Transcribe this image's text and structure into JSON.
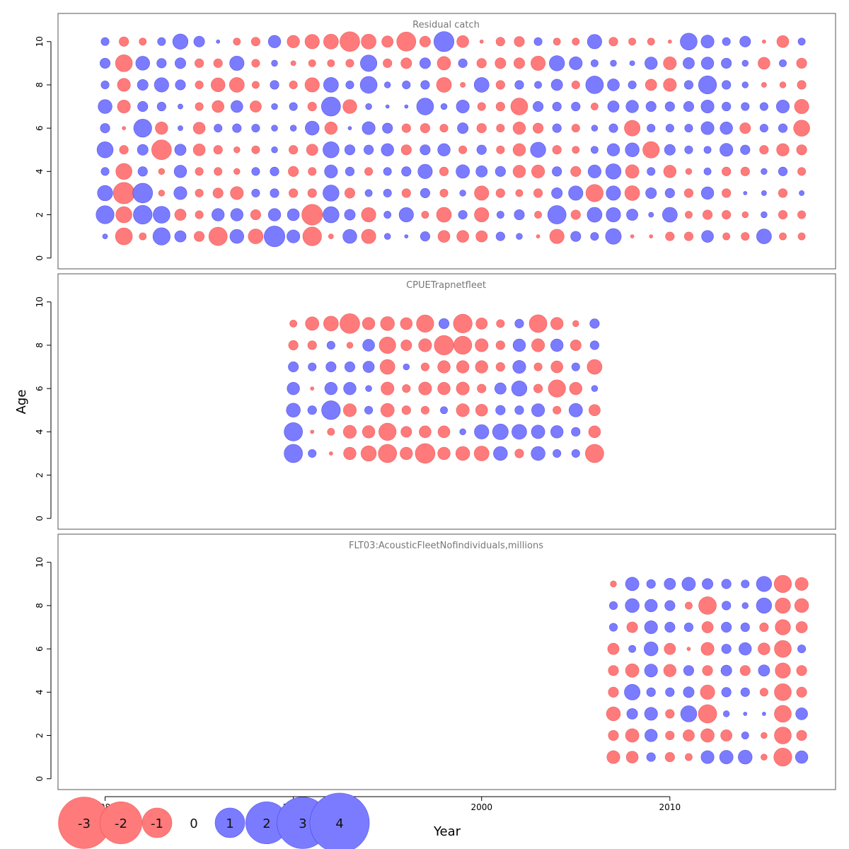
{
  "chart_data": {
    "type": "scatter",
    "subtype": "bubble-residuals",
    "xlabel": "Year",
    "ylabel": "Age",
    "xticks": [
      1980,
      1990,
      2000,
      2010
    ],
    "yticks": [
      0,
      2,
      4,
      6,
      8,
      10
    ],
    "xlim": [
      1977.5,
      2018.8
    ],
    "ylim": [
      -0.5,
      11.3
    ],
    "colors": {
      "negative": "#ff7a7a",
      "positive": "#7b7bff"
    },
    "panels": [
      {
        "title": "Residual catch",
        "years": [
          1980,
          1981,
          1982,
          1983,
          1984,
          1985,
          1986,
          1987,
          1988,
          1989,
          1990,
          1991,
          1992,
          1993,
          1994,
          1995,
          1996,
          1997,
          1998,
          1999,
          2000,
          2001,
          2002,
          2003,
          2004,
          2005,
          2006,
          2007,
          2008,
          2009,
          2010,
          2011,
          2012,
          2013,
          2014,
          2015,
          2016,
          2017
        ],
        "ages": [
          1,
          2,
          3,
          4,
          5,
          6,
          7,
          8,
          9,
          10
        ],
        "residuals": [
          [
            0.2,
            2.5,
            1.8,
            0.5,
            2.0,
            0.7,
            1.5,
            0.5,
            0.8,
            0.5
          ],
          [
            -2.2,
            -2.0,
            -3.5,
            -2.0,
            -0.6,
            -0.1,
            -1.3,
            -1.3,
            -2.2,
            -0.7
          ],
          [
            -0.4,
            2.7,
            3.0,
            0.7,
            0.9,
            2.5,
            0.8,
            0.9,
            1.5,
            -0.4
          ],
          [
            2.3,
            2.2,
            -0.3,
            -0.3,
            -3.0,
            -1.2,
            0.6,
            1.6,
            0.7,
            0.5
          ],
          [
            1.0,
            -1.0,
            1.3,
            1.2,
            1.0,
            0.2,
            0.2,
            0.8,
            0.9,
            1.8
          ],
          [
            -0.8,
            -0.5,
            -0.5,
            -0.5,
            -1.1,
            -1.1,
            -0.5,
            -0.5,
            -0.6,
            0.9
          ],
          [
            -2.6,
            1.2,
            -0.8,
            -0.5,
            -0.6,
            0.5,
            -1.1,
            -1.5,
            -0.6,
            0.1
          ],
          [
            1.5,
            1.2,
            -1.3,
            -0.3,
            -0.3,
            0.6,
            1.1,
            -1.7,
            1.6,
            -0.4
          ],
          [
            -1.7,
            -0.8,
            0.5,
            0.5,
            -0.5,
            0.5,
            -1.0,
            -0.4,
            -0.5,
            -0.6
          ],
          [
            3.3,
            1.2,
            0.6,
            0.6,
            0.3,
            0.3,
            0.3,
            0.6,
            0.3,
            1.2
          ],
          [
            1.3,
            1.1,
            -0.6,
            -0.8,
            -0.6,
            0.3,
            0.5,
            -0.5,
            -0.2,
            -1.2
          ],
          [
            -2.7,
            -3.3,
            -0.6,
            -0.5,
            -1.0,
            1.5,
            -0.6,
            -1.6,
            -0.4,
            -1.6
          ],
          [
            -0.2,
            2.0,
            2.0,
            1.3,
            2.0,
            -1.2,
            2.8,
            1.7,
            -0.4,
            -1.7
          ],
          [
            1.5,
            0.9,
            -0.8,
            0.6,
            0.8,
            0.1,
            -1.5,
            0.5,
            -0.5,
            -3.0
          ],
          [
            -1.6,
            -1.6,
            0.4,
            -0.5,
            0.7,
            1.3,
            0.3,
            2.2,
            2.1,
            -1.7
          ],
          [
            0.3,
            0.4,
            0.5,
            0.5,
            1.2,
            0.8,
            0.1,
            0.3,
            -0.6,
            -1.0
          ],
          [
            0.1,
            1.6,
            -0.6,
            0.7,
            -0.8,
            -0.6,
            0.1,
            0.5,
            -0.9,
            -2.8
          ],
          [
            0.7,
            -0.4,
            0.7,
            1.6,
            0.8,
            -0.7,
            2.2,
            0.6,
            0.9,
            -0.9
          ],
          [
            -1.1,
            -1.7,
            -0.5,
            -0.6,
            1.2,
            -0.5,
            0.3,
            -1.7,
            -1.4,
            3.1
          ],
          [
            -1.1,
            0.6,
            0.3,
            1.4,
            -0.5,
            0.9,
            1.3,
            -0.2,
            0.6,
            -1.1
          ],
          [
            -1.0,
            -1.6,
            -1.6,
            1.0,
            0.7,
            -0.7,
            -0.5,
            1.7,
            -0.7,
            -0.1
          ],
          [
            0.6,
            0.4,
            -0.6,
            0.8,
            -0.5,
            -0.5,
            -0.6,
            -0.6,
            -0.9,
            -0.6
          ],
          [
            0.3,
            0.8,
            -0.4,
            -1.2,
            -1.2,
            -1.2,
            -2.2,
            0.6,
            -0.9,
            -0.8
          ],
          [
            -0.1,
            -0.4,
            -0.6,
            -1.3,
            1.8,
            -0.8,
            0.8,
            0.4,
            -1.6,
            0.5
          ],
          [
            -1.6,
            2.6,
            0.9,
            0.7,
            -0.6,
            0.6,
            0.6,
            1.0,
            1.8,
            -0.4
          ],
          [
            0.8,
            -0.7,
            1.6,
            -0.8,
            -0.4,
            -0.5,
            0.6,
            -0.5,
            1.3,
            -0.4
          ],
          [
            0.5,
            1.7,
            -2.3,
            1.3,
            0.4,
            0.3,
            -0.4,
            2.4,
            0.4,
            1.6
          ],
          [
            1.9,
            1.6,
            1.6,
            1.8,
            1.2,
            0.6,
            1.0,
            1.1,
            0.3,
            -0.6
          ],
          [
            -0.1,
            1.0,
            -1.7,
            -1.4,
            1.5,
            -1.9,
            1.2,
            0.5,
            0.2,
            -0.4
          ],
          [
            -0.1,
            0.2,
            0.9,
            0.5,
            -2.1,
            0.5,
            0.8,
            -1.0,
            1.2,
            -0.4
          ],
          [
            -0.6,
            1.7,
            0.7,
            -1.2,
            0.9,
            0.5,
            0.7,
            -1.3,
            -1.3,
            -0.1
          ],
          [
            -0.6,
            -0.4,
            -0.6,
            -0.3,
            0.5,
            0.5,
            0.8,
            0.6,
            1.0,
            2.2
          ],
          [
            1.1,
            -0.7,
            1.2,
            0.4,
            0.4,
            1.3,
            1.3,
            2.5,
            1.2,
            1.3
          ],
          [
            -0.4,
            -0.6,
            -0.6,
            -0.6,
            1.3,
            1.2,
            0.6,
            0.6,
            0.8,
            0.5
          ],
          [
            -0.5,
            -0.3,
            0.1,
            -0.6,
            0.7,
            -0.9,
            0.5,
            0.3,
            0.3,
            0.9
          ],
          [
            1.7,
            0.3,
            0.2,
            0.3,
            -0.6,
            0.5,
            0.5,
            -0.2,
            -1.1,
            -0.1
          ],
          [
            -0.4,
            -0.6,
            -0.6,
            0.6,
            -1.2,
            0.6,
            1.3,
            -0.3,
            0.4,
            -1.1
          ],
          [
            -0.4,
            -0.5,
            0.2,
            -0.5,
            -0.8,
            -2.0,
            -1.6,
            -0.6,
            -0.8,
            0.4
          ]
        ]
      },
      {
        "title": "CPUETrapnetfleet",
        "years": [
          1990,
          1991,
          1992,
          1993,
          1994,
          1995,
          1996,
          1997,
          1998,
          1999,
          2000,
          2001,
          2002,
          2003,
          2004,
          2005,
          2006
        ],
        "ages": [
          3,
          4,
          5,
          6,
          7,
          8,
          9
        ],
        "residuals": [
          [
            2.6,
            2.6,
            1.5,
            1.2,
            0.8,
            -0.7,
            -0.4
          ],
          [
            0.5,
            -0.1,
            0.6,
            -0.1,
            0.5,
            -0.6,
            -1.4
          ],
          [
            -0.1,
            -0.4,
            2.7,
            1.2,
            0.8,
            0.5,
            -1.7
          ],
          [
            -1.2,
            -1.3,
            -1.3,
            1.2,
            0.8,
            -0.3,
            -3.0
          ],
          [
            -1.8,
            -1.2,
            0.5,
            0.3,
            1.0,
            1.1,
            -1.2
          ],
          [
            -2.6,
            -2.3,
            -1.4,
            -1.3,
            -1.7,
            -2.1,
            -1.5
          ],
          [
            -1.2,
            -0.9,
            -0.6,
            -0.5,
            0.3,
            -0.9,
            -1.1
          ],
          [
            -3.0,
            -1.1,
            -0.5,
            -1.3,
            -0.5,
            -1.3,
            -2.3
          ],
          [
            -1.2,
            -1.1,
            0.4,
            -1.2,
            -1.2,
            -2.9,
            0.8
          ],
          [
            -1.5,
            0.3,
            -1.3,
            -1.3,
            -1.2,
            -2.5,
            -2.7
          ],
          [
            -1.7,
            1.6,
            -1.1,
            -0.6,
            -1.2,
            -1.3,
            -1.0
          ],
          [
            1.5,
            1.9,
            0.7,
            1.0,
            -0.6,
            -0.6,
            -0.5
          ],
          [
            -0.6,
            1.7,
            0.6,
            1.8,
            1.3,
            1.2,
            0.6
          ],
          [
            1.5,
            1.4,
            1.3,
            -0.6,
            -0.5,
            -1.3,
            -2.4
          ],
          [
            0.5,
            1.2,
            -0.5,
            -2.3,
            -1.1,
            1.2,
            -1.2
          ],
          [
            0.5,
            0.6,
            1.4,
            -1.2,
            0.5,
            -0.9,
            -0.3
          ],
          [
            -2.6,
            -1.1,
            -1.0,
            0.3,
            -1.7,
            0.6,
            0.7
          ]
        ]
      },
      {
        "title": "FLT03:AcousticFleetNofindividuals,millions",
        "years": [
          2007,
          2008,
          2009,
          2010,
          2011,
          2012,
          2013,
          2014,
          2015,
          2016,
          2017
        ],
        "ages": [
          1,
          2,
          3,
          4,
          5,
          6,
          7,
          8,
          9
        ],
        "residuals": [
          [
            -1.3,
            -0.8,
            -1.5,
            -0.8,
            -0.8,
            -1.0,
            0.5,
            0.5,
            -0.3
          ],
          [
            -1.1,
            -1.4,
            0.9,
            1.9,
            -1.4,
            0.4,
            -0.9,
            1.5,
            1.4
          ],
          [
            0.6,
            1.2,
            1.3,
            0.6,
            1.3,
            1.5,
            1.3,
            1.2,
            0.6
          ],
          [
            -0.7,
            -0.6,
            -0.6,
            0.6,
            -1.2,
            -1.0,
            0.8,
            0.8,
            1.0
          ],
          [
            -0.4,
            -1.0,
            2.0,
            0.9,
            0.8,
            -0.1,
            0.6,
            -0.4,
            1.4
          ],
          [
            1.3,
            -1.4,
            -2.6,
            -1.6,
            -0.8,
            -1.3,
            -1.0,
            -2.4,
            0.9
          ],
          [
            1.4,
            -1.0,
            0.3,
            0.7,
            0.9,
            0.7,
            0.8,
            0.6,
            0.7
          ],
          [
            1.5,
            0.4,
            0.1,
            0.6,
            -0.8,
            1.2,
            0.6,
            0.3,
            0.5
          ],
          [
            -0.3,
            -0.3,
            0.1,
            -0.5,
            1.0,
            -1.1,
            -0.6,
            1.8,
            1.8
          ],
          [
            -2.5,
            -2.2,
            -2.2,
            -2.2,
            -1.8,
            -2.2,
            -1.8,
            -1.8,
            -2.3
          ],
          [
            1.2,
            -0.8,
            1.1,
            -0.8,
            -0.8,
            0.5,
            -1.0,
            -1.5,
            -1.3
          ]
        ]
      }
    ],
    "legend": {
      "values": [
        -3,
        -2,
        -1,
        0,
        1,
        2,
        3,
        4
      ],
      "labels": [
        "-3",
        "-2",
        "-1",
        "0",
        "1",
        "2",
        "3",
        "4"
      ]
    }
  }
}
